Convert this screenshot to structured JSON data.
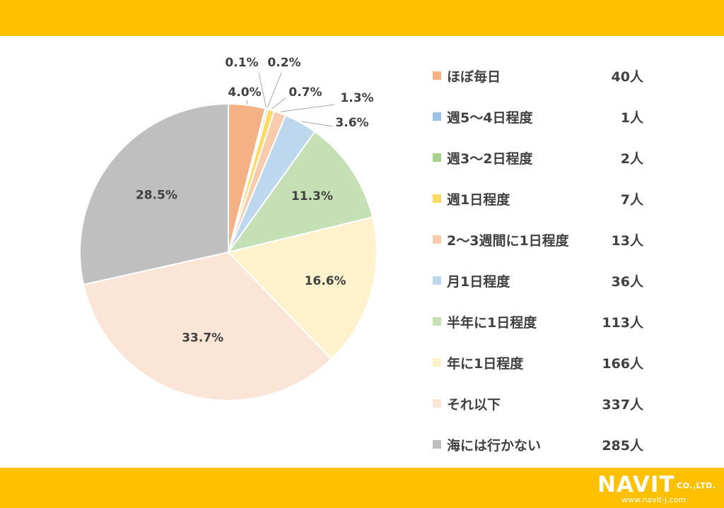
{
  "chart_data": {
    "type": "pie",
    "start_angle_deg": 0,
    "direction": "clockwise",
    "slices": [
      {
        "label": "ほぼ毎日",
        "count_label": "40人",
        "value": 40,
        "percent_label": "4.0%",
        "color": "#f4b183"
      },
      {
        "label": "週5～4日程度",
        "count_label": "1人",
        "value": 1,
        "percent_label": "0.1%",
        "color": "#9dc3e6"
      },
      {
        "label": "週3～2日程度",
        "count_label": "2人",
        "value": 2,
        "percent_label": "0.2%",
        "color": "#a9d18e"
      },
      {
        "label": "週1日程度",
        "count_label": "7人",
        "value": 7,
        "percent_label": "0.7%",
        "color": "#ffd966"
      },
      {
        "label": "2～3週間に1日程度",
        "count_label": "13人",
        "value": 13,
        "percent_label": "1.3%",
        "color": "#f8cbad"
      },
      {
        "label": "月1日程度",
        "count_label": "36人",
        "value": 36,
        "percent_label": "3.6%",
        "color": "#bdd7ee"
      },
      {
        "label": "半年に1日程度",
        "count_label": "113人",
        "value": 113,
        "percent_label": "11.3%",
        "color": "#c5e0b4"
      },
      {
        "label": "年に1日程度",
        "count_label": "166人",
        "value": 166,
        "percent_label": "16.6%",
        "color": "#fff2cc"
      },
      {
        "label": "それ以下",
        "count_label": "337人",
        "value": 337,
        "percent_label": "33.7%",
        "color": "#fbe5d6"
      },
      {
        "label": "海には行かない",
        "count_label": "285人",
        "value": 285,
        "percent_label": "28.5%",
        "color": "#bfbfbf"
      }
    ],
    "legend_placement": "right"
  },
  "branding": {
    "brand_colors": {
      "band": "#ffc000"
    },
    "logo_name": "NAVIT",
    "logo_suffix": "CO.,LTD.",
    "logo_url": "www.navit-j.com"
  }
}
